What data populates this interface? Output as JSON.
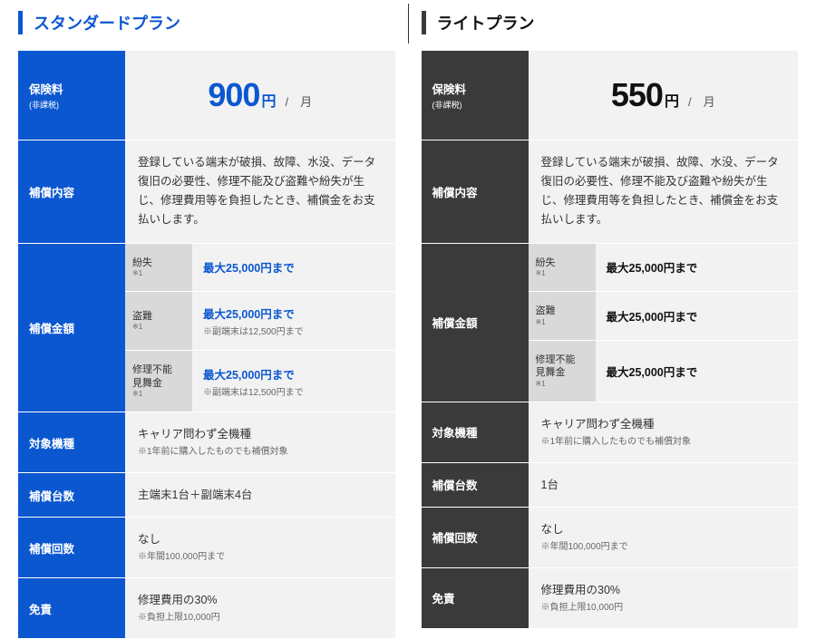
{
  "plans": {
    "standard": {
      "title": "スタンダードプラン",
      "accent_color": "#0b57d0",
      "label_bg": "#0b57d0",
      "price_color": "#0b57d0",
      "amount_color": "#0b57d0",
      "price": {
        "label": "保険料",
        "label_note": "(非課税)",
        "amount": "900",
        "currency": "円",
        "per": "/　月"
      },
      "coverage": {
        "label": "補償内容",
        "text": "登録している端末が破損、故障、水没、データ復旧の必要性、修理不能及び盗難や紛失が生じ、修理費用等を負担したとき、補償金をお支払いします。"
      },
      "amounts": {
        "label": "補償金額",
        "rows": [
          {
            "sub": "紛失",
            "sub_note": "※1",
            "value": "最大25,000円まで",
            "limit": ""
          },
          {
            "sub": "盗難",
            "sub_note": "※1",
            "value": "最大25,000円まで",
            "limit": "※副端末は12,500円まで"
          },
          {
            "sub": "修理不能\n見舞金",
            "sub_note": "※1",
            "value": "最大25,000円まで",
            "limit": "※副端末は12,500円まで"
          }
        ]
      },
      "models": {
        "label": "対象機種",
        "text": "キャリア問わず全機種",
        "sub": "※1年前に購入したものでも補償対象"
      },
      "units": {
        "label": "補償台数",
        "text": "主端末1台＋副端末4台"
      },
      "times": {
        "label": "補償回数",
        "text": "なし",
        "sub": "※年間100,000円まで"
      },
      "deductible": {
        "label": "免責",
        "text": "修理費用の30%",
        "sub": "※負担上限10,000円"
      }
    },
    "light": {
      "title": "ライトプラン",
      "accent_color": "#3a3a3a",
      "label_bg": "#3a3a3a",
      "price_color": "#111111",
      "amount_color": "#111111",
      "price": {
        "label": "保険料",
        "label_note": "(非課税)",
        "amount": "550",
        "currency": "円",
        "per": "/　月"
      },
      "coverage": {
        "label": "補償内容",
        "text": "登録している端末が破損、故障、水没、データ復旧の必要性、修理不能及び盗難や紛失が生じ、修理費用等を負担したとき、補償金をお支払いします。"
      },
      "amounts": {
        "label": "補償金額",
        "rows": [
          {
            "sub": "紛失",
            "sub_note": "※1",
            "value": "最大25,000円まで",
            "limit": ""
          },
          {
            "sub": "盗難",
            "sub_note": "※1",
            "value": "最大25,000円まで",
            "limit": ""
          },
          {
            "sub": "修理不能\n見舞金",
            "sub_note": "※1",
            "value": "最大25,000円まで",
            "limit": ""
          }
        ]
      },
      "models": {
        "label": "対象機種",
        "text": "キャリア問わず全機種",
        "sub": "※1年前に購入したものでも補償対象"
      },
      "units": {
        "label": "補償台数",
        "text": "1台"
      },
      "times": {
        "label": "補償回数",
        "text": "なし",
        "sub": "※年間100,000円まで"
      },
      "deductible": {
        "label": "免責",
        "text": "修理費用の30%",
        "sub": "※負担上限10,000円"
      }
    }
  }
}
